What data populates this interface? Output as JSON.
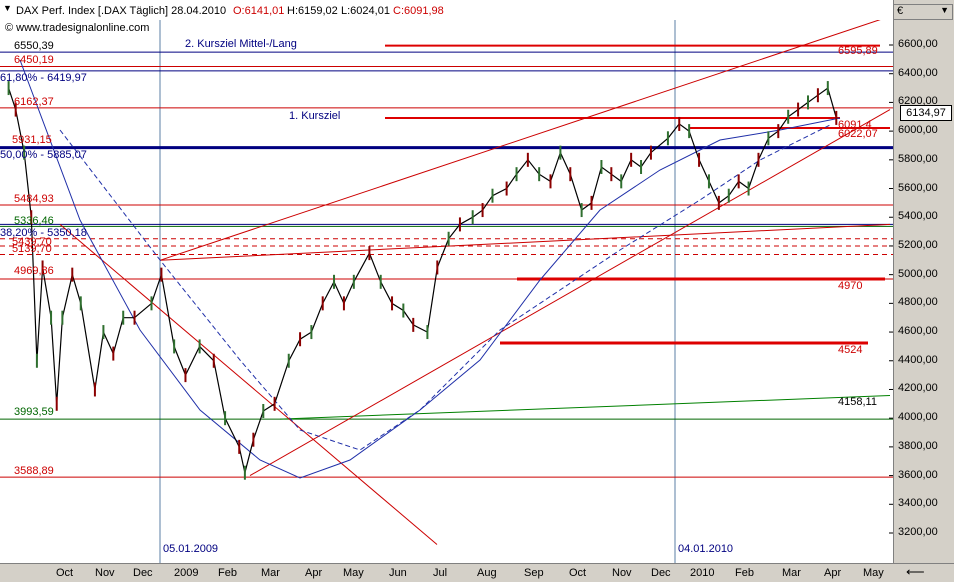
{
  "header": {
    "title": "DAX Perf. Index [.DAX  Täglich] 28.04.2010",
    "open": "O:6141,01",
    "high": "H:6159,02",
    "low": "L:6024,01",
    "close": "C:6091,98",
    "source": "© www.tradesignalonline.com"
  },
  "currency": "€",
  "current_price": "6134,97",
  "chart_data": {
    "type": "line",
    "title": "DAX Perf. Index [.DAX  Täglich]",
    "ylim": [
      3100,
      6850
    ],
    "y_ticks": [
      "6600,00",
      "6400,00",
      "6200,00",
      "6000,00",
      "5800,00",
      "5600,00",
      "5400,00",
      "5200,00",
      "5000,00",
      "4800,00",
      "4600,00",
      "4400,00",
      "4200,00",
      "4000,00",
      "3800,00",
      "3600,00",
      "3400,00",
      "3200,00"
    ],
    "x_ticks": [
      "Oct",
      "Nov",
      "Dec",
      "2009",
      "Feb",
      "Mar",
      "Apr",
      "May",
      "Jun",
      "Jul",
      "Aug",
      "Sep",
      "Oct",
      "Nov",
      "Dec",
      "2010",
      "Feb",
      "Mar",
      "Apr",
      "May"
    ],
    "x_markers": [
      "05.01.2009",
      "04.01.2010"
    ],
    "price_path": [
      [
        "2008-09-20",
        6300
      ],
      [
        "2008-09-25",
        6150
      ],
      [
        "2008-10-01",
        5850
      ],
      [
        "2008-10-06",
        5400
      ],
      [
        "2008-10-10",
        4400
      ],
      [
        "2008-10-14",
        5050
      ],
      [
        "2008-10-20",
        4700
      ],
      [
        "2008-10-24",
        4100
      ],
      [
        "2008-10-28",
        4700
      ],
      [
        "2008-11-04",
        5000
      ],
      [
        "2008-11-10",
        4800
      ],
      [
        "2008-11-20",
        4200
      ],
      [
        "2008-11-26",
        4600
      ],
      [
        "2008-12-03",
        4450
      ],
      [
        "2008-12-10",
        4700
      ],
      [
        "2008-12-18",
        4700
      ],
      [
        "2008-12-30",
        4800
      ],
      [
        "2009-01-06",
        5000
      ],
      [
        "2009-01-15",
        4500
      ],
      [
        "2009-01-23",
        4300
      ],
      [
        "2009-02-02",
        4500
      ],
      [
        "2009-02-12",
        4400
      ],
      [
        "2009-02-20",
        4000
      ],
      [
        "2009-03-02",
        3800
      ],
      [
        "2009-03-06",
        3620
      ],
      [
        "2009-03-12",
        3850
      ],
      [
        "2009-03-19",
        4050
      ],
      [
        "2009-03-27",
        4100
      ],
      [
        "2009-04-06",
        4400
      ],
      [
        "2009-04-14",
        4550
      ],
      [
        "2009-04-22",
        4600
      ],
      [
        "2009-04-30",
        4800
      ],
      [
        "2009-05-08",
        4950
      ],
      [
        "2009-05-15",
        4800
      ],
      [
        "2009-05-22",
        4950
      ],
      [
        "2009-06-02",
        5150
      ],
      [
        "2009-06-10",
        4950
      ],
      [
        "2009-06-18",
        4800
      ],
      [
        "2009-06-26",
        4750
      ],
      [
        "2009-07-03",
        4650
      ],
      [
        "2009-07-13",
        4600
      ],
      [
        "2009-07-20",
        5050
      ],
      [
        "2009-07-28",
        5250
      ],
      [
        "2009-08-05",
        5350
      ],
      [
        "2009-08-14",
        5400
      ],
      [
        "2009-08-21",
        5450
      ],
      [
        "2009-08-28",
        5550
      ],
      [
        "2009-09-07",
        5600
      ],
      [
        "2009-09-14",
        5700
      ],
      [
        "2009-09-22",
        5800
      ],
      [
        "2009-09-30",
        5700
      ],
      [
        "2009-10-08",
        5650
      ],
      [
        "2009-10-15",
        5850
      ],
      [
        "2009-10-22",
        5700
      ],
      [
        "2009-10-30",
        5450
      ],
      [
        "2009-11-06",
        5500
      ],
      [
        "2009-11-13",
        5750
      ],
      [
        "2009-11-20",
        5700
      ],
      [
        "2009-11-27",
        5650
      ],
      [
        "2009-12-04",
        5800
      ],
      [
        "2009-12-11",
        5750
      ],
      [
        "2009-12-18",
        5850
      ],
      [
        "2009-12-30",
        5950
      ],
      [
        "2010-01-07",
        6050
      ],
      [
        "2010-01-14",
        6000
      ],
      [
        "2010-01-21",
        5800
      ],
      [
        "2010-01-28",
        5650
      ],
      [
        "2010-02-04",
        5500
      ],
      [
        "2010-02-11",
        5550
      ],
      [
        "2010-02-18",
        5650
      ],
      [
        "2010-02-25",
        5600
      ],
      [
        "2010-03-04",
        5800
      ],
      [
        "2010-03-11",
        5950
      ],
      [
        "2010-03-18",
        6000
      ],
      [
        "2010-03-25",
        6100
      ],
      [
        "2010-04-01",
        6150
      ],
      [
        "2010-04-08",
        6200
      ],
      [
        "2010-04-15",
        6250
      ],
      [
        "2010-04-22",
        6300
      ],
      [
        "2010-04-28",
        6092
      ]
    ],
    "horizontal_lines": [
      {
        "value": 6550.39,
        "label": "6550,39",
        "color": "#000080"
      },
      {
        "value": 6450.19,
        "label": "6450,19",
        "color": "#cc0000"
      },
      {
        "value": 6419.97,
        "label": "61,80% - 6419,97",
        "color": "#000080"
      },
      {
        "value": 6162.37,
        "label": "6162,37",
        "color": "#cc0000"
      },
      {
        "value": 5885.07,
        "label": "50,00% - 5885,07",
        "color": "#000080"
      },
      {
        "value": 5484.93,
        "label": "5484,93",
        "color": "#cc0000"
      },
      {
        "value": 5336.46,
        "label": "5336,46",
        "color": "#006600"
      },
      {
        "value": 5350.18,
        "label": "38,20% - 5350,18",
        "color": "#000080"
      },
      {
        "value": 4969.86,
        "label": "4969,86",
        "color": "#cc0000"
      },
      {
        "value": 3993.59,
        "label": "3993,59",
        "color": "#006600"
      },
      {
        "value": 3588.89,
        "label": "3588,89",
        "color": "#cc0000"
      }
    ],
    "targets": [
      {
        "value": 6595.89,
        "label": "6595,89",
        "note": "2. Kursziel Mittel-/Lang"
      },
      {
        "value": 6091.4,
        "label": "6091,4",
        "note": "1. Kursziel"
      },
      {
        "value": 6022.07,
        "label": "6022,07",
        "note": ""
      },
      {
        "value": 4970,
        "label": "4970",
        "note": ""
      },
      {
        "value": 4524,
        "label": "4524",
        "note": ""
      },
      {
        "value": 4158.11,
        "label": "4158,11",
        "note": ""
      }
    ],
    "left_labels_partial": [
      "5931,15",
      "5439,70",
      "5139,70"
    ]
  }
}
